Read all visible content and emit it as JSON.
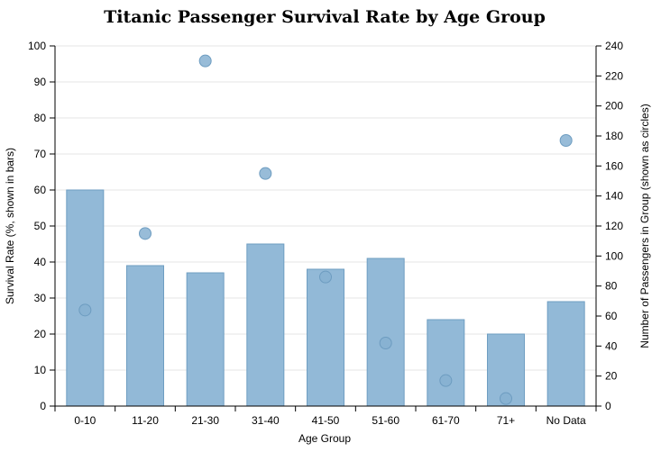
{
  "chart_data": {
    "type": "bar",
    "title": "Titanic Passenger Survival Rate by Age Group",
    "xlabel": "Age Group",
    "ylabel": "Survival Rate (%, shown in bars)",
    "y2label": "Number of Passengers in Group (shown as circles)",
    "categories": [
      "0-10",
      "11-20",
      "21-30",
      "31-40",
      "41-50",
      "51-60",
      "61-70",
      "71+",
      "No Data"
    ],
    "series": [
      {
        "type": "bar",
        "axis": "left",
        "values": [
          60,
          39,
          37,
          45,
          38,
          41,
          24,
          20,
          29
        ]
      },
      {
        "type": "scatter",
        "axis": "right",
        "values": [
          64,
          115,
          230,
          155,
          86,
          42,
          17,
          5,
          177
        ]
      }
    ],
    "ylim": [
      0,
      100
    ],
    "y_ticks": [
      0,
      10,
      20,
      30,
      40,
      50,
      60,
      70,
      80,
      90,
      100
    ],
    "y2lim": [
      0,
      240
    ],
    "y2_ticks": [
      0,
      20,
      40,
      60,
      80,
      100,
      120,
      140,
      160,
      180,
      200,
      220,
      240
    ],
    "grid": true,
    "colors": {
      "bar_fill": "#92b9d7",
      "bar_stroke": "#6f9ec2",
      "dot_fill": "#86b0d1"
    }
  }
}
